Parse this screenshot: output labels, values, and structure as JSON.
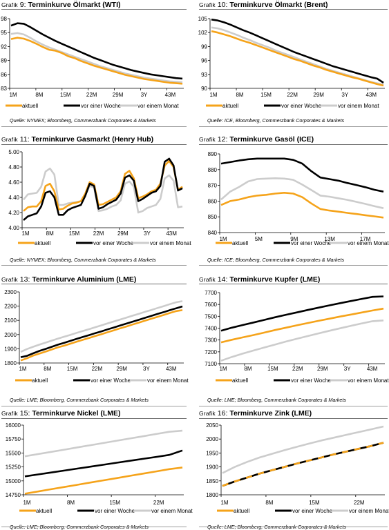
{
  "colors": {
    "aktuell": "#F5A31A",
    "woche": "#000000",
    "monat": "#CCCCCC"
  },
  "panels": [
    {
      "prefix": "Grafik",
      "number": "9",
      "title": "Terminkurve Ölmarkt (WTI)",
      "source": "Quelle: NYMEX; Bloomberg, Commerzbank Corporates & Markets",
      "legend": [
        "aktuell",
        "vor einer Woche",
        "vor einem Monat"
      ]
    },
    {
      "prefix": "Grafik",
      "number": "10",
      "title": "Terminkurve Ölmarkt (Brent)",
      "source": "Quelle: ICE, Bloomberg, Commerzbank Corporates & Markets",
      "legend": [
        "aktuell",
        "vor einer Woche",
        "vor einem Monat"
      ]
    },
    {
      "prefix": "Grafik",
      "number": "11",
      "title": "Terminkurve Gasmarkt (Henry Hub)",
      "source": "Quelle: NYMEX; Bloomberg, Commerzbank Corporates & Markets",
      "legend": [
        "aktuell",
        "vor einer Woche",
        "vor einem Monat"
      ]
    },
    {
      "prefix": "Grafik",
      "number": "12",
      "title": "Terminkurve Gasöl (ICE)",
      "source": "Quelle: ICE; Bloomberg, Commerzbank Corporates & Markets",
      "legend": [
        "aktuell",
        "vor einer Woche",
        "vor einem Monat"
      ]
    },
    {
      "prefix": "Grafik",
      "number": "13",
      "title": "Terminkurve Aluminium (LME)",
      "source": "Quelle: LME; Bloomberg, Commerzbank Corporates & Markets",
      "legend": [
        "aktuell",
        "vor einer Woche",
        "vor einem Monat"
      ]
    },
    {
      "prefix": "Grafik",
      "number": "14",
      "title": "Terminkurve Kupfer (LME)",
      "source": "Quelle: LME; Bloomberg, Commerzbank Corporates & Markets",
      "legend": [
        "aktuell",
        "vor einer Woche",
        "vor einem Monat"
      ]
    },
    {
      "prefix": "Grafik",
      "number": "15",
      "title": "Terminkurve Nickel (LME)",
      "source": "Quelle: LME; Bloomberg, Commerzbank Corporates & Markets",
      "legend": [
        "aktuell",
        "vor einer Woche",
        "vor einem Monat"
      ]
    },
    {
      "prefix": "Grafik",
      "number": "16",
      "title": "Terminkurve Zink (LME)",
      "source": "Quelle: LME; Bloomberg, Commerzbank Corporates & Markets",
      "legend": [
        "aktuell",
        "vor einer Woche",
        "vor einem Monat"
      ]
    }
  ],
  "chart_data": [
    {
      "type": "line",
      "title": "Terminkurve Ölmarkt (WTI)",
      "x_ticks": [
        "1M",
        "8M",
        "15M",
        "22M",
        "29M",
        "3Y",
        "43M"
      ],
      "ylim": [
        83,
        98
      ],
      "y_ticks": [
        83,
        86,
        89,
        92,
        95,
        98
      ],
      "series": [
        {
          "name": "aktuell",
          "values": [
            93.6,
            93.9,
            93.7,
            93.2,
            92.6,
            91.9,
            91.3,
            91.1,
            90.6,
            89.9,
            89.5,
            88.9,
            88.4,
            87.9,
            87.5,
            87.1,
            86.7,
            86.3,
            85.9,
            85.6,
            85.3,
            85.0,
            84.8,
            84.6,
            84.4,
            84.2,
            84.1,
            84.0
          ]
        },
        {
          "name": "vor einer Woche",
          "values": [
            96.5,
            97.0,
            96.9,
            96.2,
            95.4,
            94.6,
            93.9,
            93.2,
            92.6,
            92.0,
            91.4,
            90.8,
            90.2,
            89.6,
            89.1,
            88.6,
            88.1,
            87.7,
            87.3,
            86.9,
            86.6,
            86.3,
            86.0,
            85.8,
            85.6,
            85.4,
            85.2,
            85.1
          ]
        },
        {
          "name": "vor einem Monat",
          "values": [
            94.7,
            94.9,
            94.6,
            93.9,
            93.1,
            92.4,
            91.8,
            91.3,
            90.8,
            90.3,
            89.8,
            89.3,
            88.8,
            88.3,
            87.8,
            87.4,
            87.0,
            86.6,
            86.2,
            85.9,
            85.6,
            85.3,
            85.1,
            84.9,
            84.7,
            84.5,
            84.4,
            84.3
          ]
        }
      ]
    },
    {
      "type": "line",
      "title": "Terminkurve Ölmarkt (Brent)",
      "x_ticks": [
        "1M",
        "8M",
        "15M",
        "22M",
        "29M",
        "3Y",
        "43M"
      ],
      "ylim": [
        90,
        105
      ],
      "y_ticks": [
        90,
        93,
        96,
        99,
        102,
        105
      ],
      "series": [
        {
          "name": "aktuell",
          "values": [
            102.3,
            102.0,
            101.6,
            101.2,
            100.7,
            100.2,
            99.8,
            99.3,
            98.8,
            98.3,
            97.8,
            97.3,
            96.8,
            96.3,
            95.9,
            95.4,
            94.9,
            94.5,
            94.0,
            93.6,
            93.2,
            92.8,
            92.4,
            92.1,
            91.7,
            91.3,
            90.9,
            90.6
          ]
        },
        {
          "name": "vor einer Woche",
          "values": [
            104.8,
            104.6,
            104.2,
            103.7,
            103.1,
            102.5,
            102.0,
            101.4,
            100.8,
            100.2,
            99.6,
            99.0,
            98.4,
            97.8,
            97.3,
            96.8,
            96.3,
            95.8,
            95.3,
            94.8,
            94.4,
            94.0,
            93.6,
            93.2,
            92.8,
            92.4,
            92.1,
            91.2
          ]
        },
        {
          "name": "vor einem Monat",
          "values": [
            103.1,
            102.9,
            102.5,
            102.0,
            101.5,
            100.9,
            100.4,
            99.8,
            99.3,
            98.8,
            98.2,
            97.7,
            97.2,
            96.7,
            96.2,
            95.7,
            95.2,
            94.7,
            94.2,
            93.8,
            93.4,
            93.0,
            92.6,
            92.2,
            91.8,
            91.4,
            91.1,
            90.8
          ]
        }
      ]
    },
    {
      "type": "line",
      "title": "Terminkurve Gasmarkt (Henry Hub)",
      "x_ticks": [
        "1M",
        "8M",
        "15M",
        "22M",
        "29M",
        "3Y",
        "43M"
      ],
      "ylim": [
        4.0,
        5.0
      ],
      "y_ticks": [
        "4.00",
        "4.20",
        "4.40",
        "4.60",
        "4.80",
        "5.00"
      ],
      "series": [
        {
          "name": "aktuell",
          "values": [
            4.22,
            4.27,
            4.28,
            4.28,
            4.35,
            4.55,
            4.58,
            4.48,
            4.24,
            4.25,
            4.29,
            4.32,
            4.33,
            4.35,
            4.45,
            4.6,
            4.57,
            4.3,
            4.31,
            4.34,
            4.37,
            4.4,
            4.48,
            4.71,
            4.75,
            4.65,
            4.39,
            4.41,
            4.44,
            4.48,
            4.5,
            4.58,
            4.82,
            4.88,
            4.8,
            4.5,
            4.54
          ]
        },
        {
          "name": "vor einer Woche",
          "values": [
            4.1,
            4.15,
            4.17,
            4.19,
            4.28,
            4.46,
            4.48,
            4.4,
            4.17,
            4.17,
            4.23,
            4.26,
            4.28,
            4.3,
            4.42,
            4.58,
            4.55,
            4.25,
            4.27,
            4.31,
            4.34,
            4.37,
            4.45,
            4.66,
            4.69,
            4.62,
            4.35,
            4.38,
            4.42,
            4.46,
            4.48,
            4.55,
            4.87,
            4.91,
            4.82,
            4.49,
            4.52
          ]
        },
        {
          "name": "vor einem Monat",
          "values": [
            4.37,
            4.44,
            4.45,
            4.46,
            4.54,
            4.74,
            4.78,
            4.7,
            4.3,
            4.3,
            4.32,
            4.33,
            4.34,
            4.35,
            4.43,
            4.55,
            4.53,
            4.22,
            4.23,
            4.25,
            4.28,
            4.3,
            4.36,
            4.58,
            4.61,
            4.54,
            4.2,
            4.22,
            4.26,
            4.28,
            4.3,
            4.38,
            4.65,
            4.69,
            4.62,
            4.27,
            4.28
          ]
        }
      ]
    },
    {
      "type": "line",
      "title": "Terminkurve Gasöl (ICE)",
      "x_ticks": [
        "1M",
        "5M",
        "9M",
        "13M",
        "17M"
      ],
      "ylim": [
        840,
        890
      ],
      "y_ticks": [
        840,
        850,
        860,
        870,
        880,
        890
      ],
      "series": [
        {
          "name": "aktuell",
          "values": [
            857.5,
            860.0,
            861.0,
            862.5,
            863.5,
            864.0,
            864.8,
            865.3,
            864.8,
            862.5,
            858.5,
            855.0,
            854.0,
            853.3,
            852.5,
            851.8,
            851.0,
            850.3,
            849.5
          ]
        },
        {
          "name": "vor einer Woche",
          "values": [
            883.8,
            884.8,
            885.8,
            886.6,
            887.0,
            887.0,
            887.0,
            887.0,
            886.2,
            883.8,
            879.0,
            875.0,
            874.0,
            873.0,
            871.5,
            870.2,
            868.8,
            867.2,
            866.0
          ]
        },
        {
          "name": "vor einem Monat",
          "values": [
            861.0,
            866.0,
            869.0,
            872.5,
            874.0,
            874.3,
            874.5,
            874.3,
            873.5,
            870.5,
            867.0,
            863.5,
            862.8,
            861.8,
            860.8,
            859.5,
            858.2,
            856.8,
            855.5
          ]
        }
      ]
    },
    {
      "type": "line",
      "title": "Terminkurve Aluminium (LME)",
      "x_ticks": [
        "1M",
        "8M",
        "15M",
        "22M",
        "29M",
        "3Y",
        "43M"
      ],
      "ylim": [
        1800,
        2300
      ],
      "y_ticks": [
        1800,
        1900,
        2000,
        2100,
        2200,
        2300
      ],
      "series": [
        {
          "name": "aktuell",
          "values": [
            1818,
            1833,
            1852,
            1866,
            1880,
            1895,
            1910,
            1922,
            1936,
            1950,
            1963,
            1976,
            1990,
            2003,
            2017,
            2030,
            2044,
            2057,
            2071,
            2084,
            2098,
            2111,
            2125,
            2138,
            2152,
            2165,
            2172
          ]
        },
        {
          "name": "vor einer Woche",
          "values": [
            1841,
            1850,
            1868,
            1885,
            1899,
            1914,
            1929,
            1942,
            1956,
            1970,
            1983,
            1996,
            2010,
            2023,
            2037,
            2050,
            2064,
            2077,
            2091,
            2104,
            2118,
            2131,
            2145,
            2158,
            2172,
            2185,
            2198
          ]
        },
        {
          "name": "vor einem Monat",
          "values": [
            1878,
            1898,
            1914,
            1929,
            1943,
            1958,
            1972,
            1985,
            1998,
            2012,
            2025,
            2038,
            2052,
            2065,
            2079,
            2092,
            2106,
            2119,
            2133,
            2146,
            2160,
            2173,
            2187,
            2200,
            2214,
            2227,
            2235
          ]
        }
      ]
    },
    {
      "type": "line",
      "title": "Terminkurve Kupfer (LME)",
      "x_ticks": [
        "1M",
        "8M",
        "15M",
        "22M",
        "29M",
        "3Y",
        "43M"
      ],
      "ylim": [
        7100,
        7700
      ],
      "y_ticks": [
        7100,
        7200,
        7300,
        7400,
        7500,
        7600,
        7700
      ],
      "series": [
        {
          "name": "aktuell",
          "values": [
            7280,
            7302,
            7322,
            7342,
            7363,
            7384,
            7404,
            7424,
            7443,
            7462,
            7480,
            7498,
            7515,
            7532,
            7549,
            7565
          ]
        },
        {
          "name": "vor einer Woche",
          "values": [
            7378,
            7404,
            7426,
            7448,
            7470,
            7492,
            7513,
            7533,
            7553,
            7573,
            7592,
            7611,
            7629,
            7647,
            7664,
            7668
          ]
        },
        {
          "name": "vor einem Monat",
          "values": [
            7125,
            7157,
            7185,
            7211,
            7237,
            7262,
            7287,
            7310,
            7333,
            7356,
            7378,
            7399,
            7420,
            7440,
            7459,
            7465
          ]
        }
      ]
    },
    {
      "type": "line",
      "title": "Terminkurve Nickel (LME)",
      "x_ticks": [
        "1M",
        "8M",
        "15M",
        "22M"
      ],
      "ylim": [
        14750,
        16000
      ],
      "y_ticks": [
        14750,
        15000,
        15250,
        15500,
        15750,
        16000
      ],
      "series": [
        {
          "name": "aktuell",
          "values": [
            14770,
            14810,
            14850,
            14890,
            14930,
            14970,
            15010,
            15050,
            15090,
            15130,
            15170,
            15210,
            15240
          ]
        },
        {
          "name": "vor einer Woche",
          "values": [
            15080,
            15115,
            15150,
            15185,
            15220,
            15255,
            15290,
            15325,
            15360,
            15395,
            15430,
            15465,
            15545
          ]
        },
        {
          "name": "vor einem Monat",
          "values": [
            15440,
            15480,
            15520,
            15560,
            15600,
            15640,
            15680,
            15720,
            15760,
            15800,
            15840,
            15880,
            15900
          ]
        }
      ]
    },
    {
      "type": "line",
      "title": "Terminkurve Zink (LME)",
      "x_ticks": [
        "1M",
        "8M",
        "15M",
        "22M"
      ],
      "ylim": [
        1800,
        2050
      ],
      "y_ticks": [
        1800,
        1850,
        1900,
        1950,
        2000,
        2050
      ],
      "series": [
        {
          "name": "aktuell",
          "values": [
            1832,
            1848,
            1862,
            1876,
            1888,
            1900,
            1912,
            1923,
            1934,
            1945,
            1955,
            1965,
            1975,
            1987
          ]
        },
        {
          "name": "vor einer Woche",
          "values": [
            1832,
            1848,
            1862,
            1876,
            1888,
            1900,
            1912,
            1923,
            1934,
            1945,
            1955,
            1965,
            1975,
            1987
          ]
        },
        {
          "name": "vor einem Monat",
          "values": [
            1878,
            1900,
            1918,
            1934,
            1947,
            1960,
            1972,
            1984,
            1995,
            2005,
            2015,
            2025,
            2035,
            2045
          ]
        }
      ]
    }
  ]
}
